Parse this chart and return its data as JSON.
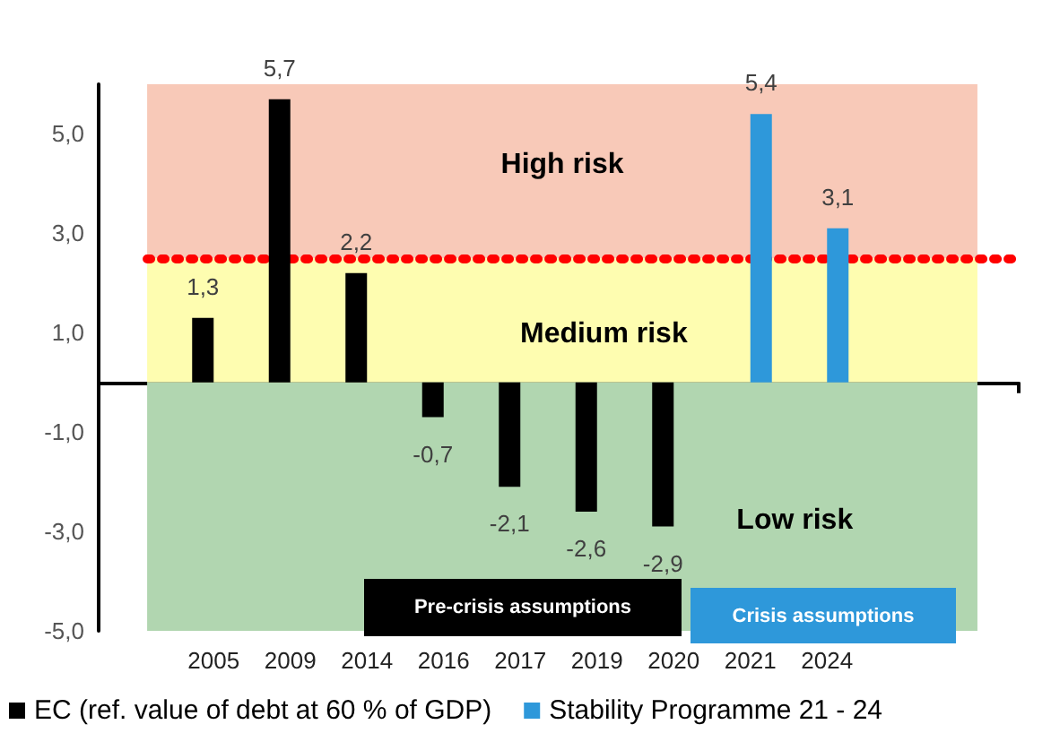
{
  "chart_data": {
    "type": "bar",
    "categories": [
      null,
      "2005",
      "2009",
      "2014",
      "2016",
      "2017",
      "2019",
      "2020",
      "2021",
      "2024",
      null,
      null
    ],
    "series": [
      {
        "name": "EC (ref. value of debt at 60 % of GDP)",
        "color": "#000000",
        "values": [
          null,
          1.3,
          5.7,
          2.2,
          -0.7,
          -2.1,
          -2.6,
          -2.9,
          null,
          null,
          null,
          null
        ],
        "value_labels": [
          null,
          "1,3",
          "5,7",
          "2,2",
          "-0,7",
          "-2,1",
          "-2,6",
          "-2,9",
          null,
          null,
          null,
          null
        ]
      },
      {
        "name": "Stability Programme 21 - 24",
        "color": "#2e98da",
        "values": [
          null,
          null,
          null,
          null,
          null,
          null,
          null,
          null,
          5.4,
          3.1,
          null,
          null
        ],
        "value_labels": [
          null,
          null,
          null,
          null,
          null,
          null,
          null,
          null,
          "5,4",
          "3,1",
          null,
          null
        ]
      }
    ],
    "ylim": [
      -5,
      6
    ],
    "yticks": [
      {
        "value": -5,
        "label": "-5,0"
      },
      {
        "value": -3,
        "label": "-3,0"
      },
      {
        "value": -1,
        "label": "-1,0"
      },
      {
        "value": 1,
        "label": "1,0"
      },
      {
        "value": 3,
        "label": "3,0"
      },
      {
        "value": 5,
        "label": "5,0"
      }
    ],
    "bands": [
      {
        "axis": "y",
        "from": 2.5,
        "to": 6,
        "label": "High risk",
        "color": "#f8c9b8"
      },
      {
        "axis": "y",
        "from": 0,
        "to": 2.5,
        "label": "Medium risk",
        "color": "#fefdb0"
      },
      {
        "axis": "y",
        "from": -5,
        "to": 0,
        "label": "Low risk",
        "color": "#b1d6b0"
      }
    ],
    "ref_lines": [
      {
        "axis": "y",
        "value": 2.5,
        "color": "#ff0000",
        "line_style": "dotted"
      }
    ],
    "annotations": [
      "Pre-crisis assumptions",
      "Crisis assumptions"
    ],
    "legend": "bottom",
    "grid": false
  }
}
